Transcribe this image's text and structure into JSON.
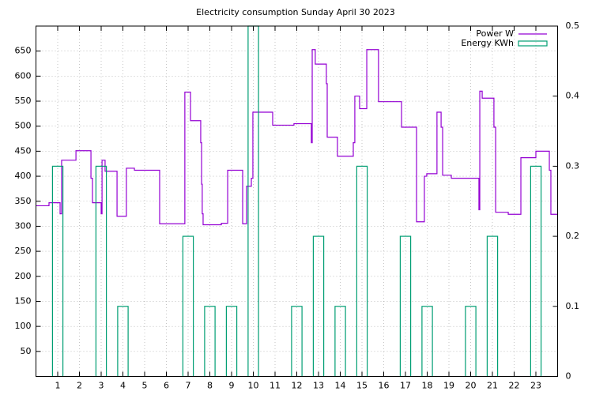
{
  "chart_data": {
    "type": "line",
    "title": "Electricity consumption Sunday April 30 2023",
    "xlim": [
      0,
      24
    ],
    "xticks": [
      1,
      2,
      3,
      4,
      5,
      6,
      7,
      8,
      9,
      10,
      11,
      12,
      13,
      14,
      15,
      16,
      17,
      18,
      19,
      20,
      21,
      22,
      23
    ],
    "ylim": [
      0,
      700
    ],
    "yticks": [
      50,
      100,
      150,
      200,
      250,
      300,
      350,
      400,
      450,
      500,
      550,
      600,
      650
    ],
    "y2lim": [
      0,
      0.5
    ],
    "y2ticks": [
      0,
      0.1,
      0.2,
      0.3,
      0.4,
      0.5
    ],
    "grid": true,
    "legend": "top-right",
    "series": [
      {
        "name": "Power W",
        "color": "#9400d3",
        "style": "step",
        "x": [
          0,
          0.6,
          1.11,
          1.18,
          1.84,
          2.53,
          2.6,
          3.0,
          3.04,
          3.18,
          3.73,
          4.16,
          4.53,
          5.69,
          6.85,
          7.11,
          7.58,
          7.62,
          7.65,
          7.69,
          8.53,
          8.82,
          9.51,
          9.69,
          9.91,
          9.98,
          10.89,
          11.87,
          12.67,
          12.71,
          12.85,
          13.36,
          13.4,
          13.87,
          14.6,
          14.67,
          14.89,
          15.22,
          15.76,
          16.82,
          17.51,
          17.87,
          17.98,
          18.45,
          18.64,
          18.71,
          19.11,
          20.38,
          20.42,
          20.53,
          21.07,
          21.15,
          21.73,
          22.31,
          23.0,
          23.62,
          23.69,
          24
        ],
        "values": [
          341,
          347,
          325,
          432,
          451,
          396,
          347,
          325,
          432,
          410,
          320,
          416,
          412,
          305,
          568,
          511,
          467,
          384,
          325,
          303,
          306,
          412,
          305,
          380,
          396,
          528,
          502,
          505,
          467,
          653,
          624,
          585,
          478,
          440,
          467,
          560,
          535,
          653,
          549,
          498,
          309,
          400,
          405,
          528,
          498,
          402,
          396,
          333,
          570,
          556,
          498,
          328,
          324,
          437,
          450,
          412,
          324,
          324
        ]
      },
      {
        "name": "Energy KWh",
        "color": "#009e73",
        "style": "boxes",
        "axis": "y2",
        "width": 0.48,
        "x": [
          1,
          3,
          4,
          7,
          8,
          9,
          10,
          12,
          13,
          14,
          15,
          17,
          18,
          20,
          21,
          23
        ],
        "values": [
          0.3,
          0.3,
          0.1,
          0.2,
          0.1,
          0.1,
          0.5,
          0.1,
          0.2,
          0.1,
          0.3,
          0.2,
          0.1,
          0.1,
          0.2,
          0.3
        ]
      }
    ]
  }
}
